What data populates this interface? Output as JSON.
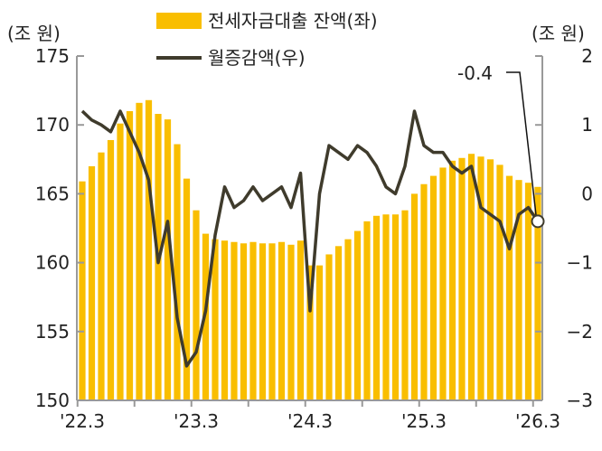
{
  "chart_data": {
    "type": "bar+line",
    "left_unit": "(조 원)",
    "right_unit": "(조 원)",
    "left_ylim": [
      150,
      175
    ],
    "left_ticks": [
      150,
      155,
      160,
      165,
      170,
      175
    ],
    "right_ylim": [
      -3,
      2
    ],
    "right_ticks": [
      -3,
      -2,
      -1,
      0,
      1,
      2
    ],
    "x_tick_labels": [
      "'22.3",
      "'23.3",
      "'24.3",
      "'25.3",
      "'26.3"
    ],
    "x_tick_indices": [
      0,
      12,
      24,
      36,
      48
    ],
    "legend_placement": "top-center",
    "series": [
      {
        "name": "전세자금대출 잔액(좌)",
        "type": "bar",
        "axis": "left",
        "color": "#F9BE00",
        "values": [
          165.9,
          167.0,
          168.0,
          168.9,
          170.1,
          171.0,
          171.6,
          171.8,
          170.8,
          170.4,
          168.6,
          166.1,
          163.8,
          162.1,
          161.7,
          161.6,
          161.5,
          161.4,
          161.5,
          161.4,
          161.4,
          161.5,
          161.3,
          161.6,
          159.8,
          159.8,
          160.6,
          161.2,
          161.7,
          162.3,
          163.0,
          163.4,
          163.5,
          163.5,
          163.8,
          165.0,
          165.7,
          166.3,
          166.9,
          167.4,
          167.6,
          167.9,
          167.7,
          167.5,
          167.1,
          166.3,
          166.0,
          165.8,
          165.5
        ]
      },
      {
        "name": "월증감액(우)",
        "type": "line",
        "axis": "right",
        "color": "#3F3B2C",
        "values": [
          1.2,
          1.07,
          1.0,
          0.9,
          1.2,
          0.9,
          0.6,
          0.2,
          -1.0,
          -0.4,
          -1.8,
          -2.5,
          -2.3,
          -1.7,
          -0.6,
          0.1,
          -0.2,
          -0.1,
          0.1,
          -0.1,
          0.0,
          0.1,
          -0.2,
          0.3,
          -1.7,
          0.0,
          0.7,
          0.6,
          0.5,
          0.7,
          0.6,
          0.4,
          0.1,
          0.0,
          0.4,
          1.2,
          0.7,
          0.6,
          0.6,
          0.4,
          0.3,
          0.4,
          -0.2,
          -0.3,
          -0.4,
          -0.8,
          -0.3,
          -0.2,
          -0.4
        ]
      }
    ],
    "annotation": {
      "text": "-0.4",
      "index": 48
    }
  }
}
